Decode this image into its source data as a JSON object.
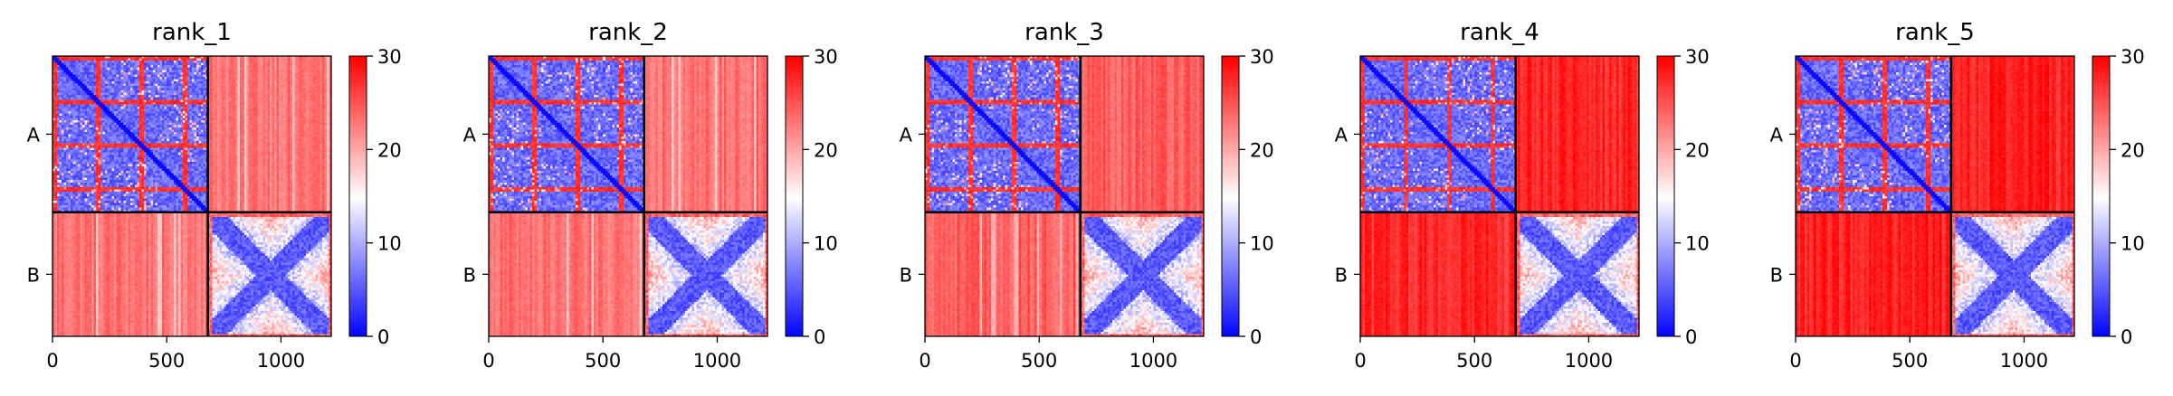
{
  "figure": {
    "colormap": "bwr",
    "cmap_colors": {
      "low": "#0000ff",
      "mid": "#ffffff",
      "high": "#ff0000"
    },
    "frame_color": "#000000"
  },
  "chart_data": [
    {
      "type": "heatmap",
      "title": "rank_1",
      "x_ticks": [
        0,
        500,
        1000
      ],
      "x_range": [
        0,
        1220
      ],
      "y_tick_labels": [
        "A",
        "B"
      ],
      "chain_boundary": 680,
      "colorbar": {
        "min": 0,
        "max": 30,
        "ticks": [
          0,
          10,
          20,
          30
        ]
      },
      "inter_chain_level": 0.78
    },
    {
      "type": "heatmap",
      "title": "rank_2",
      "x_ticks": [
        0,
        500,
        1000
      ],
      "x_range": [
        0,
        1220
      ],
      "y_tick_labels": [
        "A",
        "B"
      ],
      "chain_boundary": 680,
      "colorbar": {
        "min": 0,
        "max": 30,
        "ticks": [
          0,
          10,
          20,
          30
        ]
      },
      "inter_chain_level": 0.78
    },
    {
      "type": "heatmap",
      "title": "rank_3",
      "x_ticks": [
        0,
        500,
        1000
      ],
      "x_range": [
        0,
        1220
      ],
      "y_tick_labels": [
        "A",
        "B"
      ],
      "chain_boundary": 680,
      "colorbar": {
        "min": 0,
        "max": 30,
        "ticks": [
          0,
          10,
          20,
          30
        ]
      },
      "inter_chain_level": 0.82
    },
    {
      "type": "heatmap",
      "title": "rank_4",
      "x_ticks": [
        0,
        500,
        1000
      ],
      "x_range": [
        0,
        1220
      ],
      "y_tick_labels": [
        "A",
        "B"
      ],
      "chain_boundary": 680,
      "colorbar": {
        "min": 0,
        "max": 30,
        "ticks": [
          0,
          10,
          20,
          30
        ]
      },
      "inter_chain_level": 0.92
    },
    {
      "type": "heatmap",
      "title": "rank_5",
      "x_ticks": [
        0,
        500,
        1000
      ],
      "x_range": [
        0,
        1220
      ],
      "y_tick_labels": [
        "A",
        "B"
      ],
      "chain_boundary": 680,
      "colorbar": {
        "min": 0,
        "max": 30,
        "ticks": [
          0,
          10,
          20,
          30
        ]
      },
      "inter_chain_level": 0.94
    }
  ]
}
